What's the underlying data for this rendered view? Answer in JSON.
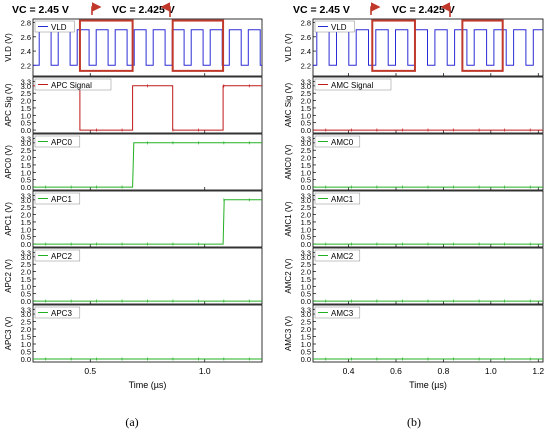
{
  "figure": {
    "panel_labels": [
      "(a)",
      "(b)"
    ],
    "header_labels": [
      "VC = 2.45 V",
      "VC = 2.425 V"
    ]
  },
  "colors": {
    "vld": "#2b2bd6",
    "signal": "#c01818",
    "cell": "#22b022",
    "highlight": "#c0392b",
    "annotation_arrow": "#c0392b"
  },
  "chart_data": [
    {
      "panel": "(a)",
      "type": "line",
      "xlabel": "Time (µs)",
      "xlim": [
        0.25,
        1.25
      ],
      "xticks": [
        0.5,
        1.0
      ],
      "xtick_labels": [
        "0.5",
        "1.0"
      ],
      "grid": false,
      "annotations": [
        "VC = 2.45 V",
        "VC = 2.425 V"
      ],
      "subplots": [
        {
          "ylabel": "VLD (V)",
          "legend": "VLD",
          "ylim": [
            2.05,
            2.85
          ],
          "yticks": [
            2.2,
            2.4,
            2.6,
            2.8
          ],
          "ytick_labels": [
            "2.2",
            "2.4",
            "2.6",
            "2.8"
          ],
          "series": [
            {
              "color_key": "vld",
              "pulse": {
                "low": 2.2,
                "high": 2.7,
                "start": 0.277,
                "period": 0.083,
                "high_width": 0.052
              },
              "edge_markers": true
            }
          ]
        },
        {
          "ylabel": "APC Sig (V)",
          "legend": "APC Signal",
          "ylim": [
            -0.2,
            3.6
          ],
          "yticks": [
            0.0,
            0.5,
            1.0,
            1.5,
            2.0,
            2.5,
            3.0,
            3.3
          ],
          "ytick_labels": [
            "0.0",
            "0.5",
            "1.0",
            "1.5",
            "2.0",
            "2.5",
            "3.0",
            "3.3"
          ],
          "series": [
            {
              "color_key": "signal",
              "x": [
                0.25,
                0.455,
                0.455,
                0.685,
                0.685,
                0.86,
                0.86,
                1.08,
                1.08,
                1.25
              ],
              "y": [
                3.0,
                3.0,
                0.0,
                0.0,
                3.0,
                3.0,
                0.0,
                0.0,
                3.0,
                3.0
              ]
            }
          ]
        },
        {
          "ylabel": "APC0 (V)",
          "legend": "APC0",
          "ylim": [
            -0.2,
            3.6
          ],
          "yticks": [
            0.0,
            0.5,
            1.0,
            1.5,
            2.0,
            2.5,
            3.0,
            3.3
          ],
          "ytick_labels": [
            "0.0",
            "0.5",
            "1.0",
            "1.5",
            "2.0",
            "2.5",
            "3.0",
            "3.3"
          ],
          "series": [
            {
              "color_key": "cell",
              "x": [
                0.25,
                0.685,
                0.69,
                1.25
              ],
              "y": [
                0.0,
                0.0,
                3.0,
                3.0
              ]
            }
          ]
        },
        {
          "ylabel": "APC1 (V)",
          "legend": "APC1",
          "ylim": [
            -0.2,
            3.6
          ],
          "yticks": [
            0.0,
            0.5,
            1.0,
            1.5,
            2.0,
            2.5,
            3.0,
            3.3
          ],
          "ytick_labels": [
            "0.0",
            "0.5",
            "1.0",
            "1.5",
            "2.0",
            "2.5",
            "3.0",
            "3.3"
          ],
          "series": [
            {
              "color_key": "cell",
              "x": [
                0.25,
                1.08,
                1.085,
                1.25
              ],
              "y": [
                0.0,
                0.0,
                3.0,
                3.0
              ]
            }
          ]
        },
        {
          "ylabel": "APC2 (V)",
          "legend": "APC2",
          "ylim": [
            -0.2,
            3.6
          ],
          "yticks": [
            0.0,
            0.5,
            1.0,
            1.5,
            2.0,
            2.5,
            3.0,
            3.3
          ],
          "ytick_labels": [
            "0.0",
            "0.5",
            "1.0",
            "1.5",
            "2.0",
            "2.5",
            "3.0",
            "3.3"
          ],
          "series": [
            {
              "color_key": "cell",
              "x": [
                0.25,
                1.25
              ],
              "y": [
                0.0,
                0.0
              ]
            }
          ]
        },
        {
          "ylabel": "APC3 (V)",
          "legend": "APC3",
          "ylim": [
            -0.2,
            3.6
          ],
          "yticks": [
            0.0,
            0.5,
            1.0,
            1.5,
            2.0,
            2.5,
            3.0,
            3.3
          ],
          "ytick_labels": [
            "0.0",
            "0.5",
            "1.0",
            "1.5",
            "2.0",
            "2.5",
            "3.0",
            "3.3"
          ],
          "series": [
            {
              "color_key": "cell",
              "x": [
                0.25,
                1.25
              ],
              "y": [
                0.0,
                0.0
              ]
            }
          ]
        }
      ],
      "highlights": [
        {
          "x": [
            0.455,
            0.685
          ],
          "y": [
            2.15,
            2.8
          ]
        },
        {
          "x": [
            0.86,
            1.08
          ],
          "y": [
            2.15,
            2.8
          ]
        }
      ]
    },
    {
      "panel": "(b)",
      "type": "line",
      "xlabel": "Time (µs)",
      "xlim": [
        0.25,
        1.22
      ],
      "xticks": [
        0.4,
        0.6,
        0.8,
        1.0,
        1.2
      ],
      "xtick_labels": [
        "0.4",
        "0.6",
        "0.8",
        "1.0",
        "1.2"
      ],
      "grid": false,
      "annotations": [
        "VC = 2.45 V",
        "VC = 2.425 V"
      ],
      "subplots": [
        {
          "ylabel": "VLD (V)",
          "legend": "VLD",
          "ylim": [
            2.05,
            2.85
          ],
          "yticks": [
            2.2,
            2.4,
            2.6,
            2.8
          ],
          "ytick_labels": [
            "2.2",
            "2.4",
            "2.6",
            "2.8"
          ],
          "series": [
            {
              "color_key": "vld",
              "pulse": {
                "low": 2.2,
                "high": 2.7,
                "start": 0.266,
                "period": 0.083,
                "high_width": 0.052
              },
              "edge_markers": true
            }
          ]
        },
        {
          "ylabel": "AMC Sig (V)",
          "legend": "AMC Signal",
          "ylim": [
            -0.2,
            3.6
          ],
          "yticks": [
            0.0,
            0.5,
            1.0,
            1.5,
            2.0,
            2.5,
            3.0,
            3.3
          ],
          "ytick_labels": [
            "0.0",
            "0.5",
            "1.0",
            "1.5",
            "2.0",
            "2.5",
            "3.0",
            "3.3"
          ],
          "series": [
            {
              "color_key": "signal",
              "x": [
                0.25,
                1.22
              ],
              "y": [
                0.0,
                0.0
              ]
            }
          ]
        },
        {
          "ylabel": "AMC0 (V)",
          "legend": "AMC0",
          "ylim": [
            -0.2,
            3.6
          ],
          "yticks": [
            0.0,
            0.5,
            1.0,
            1.5,
            2.0,
            2.5,
            3.0,
            3.3
          ],
          "ytick_labels": [
            "0.0",
            "0.5",
            "1.0",
            "1.5",
            "2.0",
            "2.5",
            "3.0",
            "3.3"
          ],
          "series": [
            {
              "color_key": "cell",
              "x": [
                0.25,
                1.22
              ],
              "y": [
                0.0,
                0.0
              ]
            }
          ]
        },
        {
          "ylabel": "AMC1 (V)",
          "legend": "AMC1",
          "ylim": [
            -0.2,
            3.6
          ],
          "yticks": [
            0.0,
            0.5,
            1.0,
            1.5,
            2.0,
            2.5,
            3.0,
            3.3
          ],
          "ytick_labels": [
            "0.0",
            "0.5",
            "1.0",
            "1.5",
            "2.0",
            "2.5",
            "3.0",
            "3.3"
          ],
          "series": [
            {
              "color_key": "cell",
              "x": [
                0.25,
                1.22
              ],
              "y": [
                0.0,
                0.0
              ]
            }
          ]
        },
        {
          "ylabel": "AMC2 (V)",
          "legend": "AMC2",
          "ylim": [
            -0.2,
            3.6
          ],
          "yticks": [
            0.0,
            0.5,
            1.0,
            1.5,
            2.0,
            2.5,
            3.0,
            3.3
          ],
          "ytick_labels": [
            "0.0",
            "0.5",
            "1.0",
            "1.5",
            "2.0",
            "2.5",
            "3.0",
            "3.3"
          ],
          "series": [
            {
              "color_key": "cell",
              "x": [
                0.25,
                1.22
              ],
              "y": [
                0.0,
                0.0
              ]
            }
          ]
        },
        {
          "ylabel": "AMC3 (V)",
          "legend": "AMC3",
          "ylim": [
            -0.2,
            3.6
          ],
          "yticks": [
            0.0,
            0.5,
            1.0,
            1.5,
            2.0,
            2.5,
            3.0,
            3.3
          ],
          "ytick_labels": [
            "0.0",
            "0.5",
            "1.0",
            "1.5",
            "2.0",
            "2.5",
            "3.0",
            "3.3"
          ],
          "series": [
            {
              "color_key": "cell",
              "x": [
                0.25,
                1.22
              ],
              "y": [
                0.0,
                0.0
              ]
            }
          ]
        }
      ],
      "highlights": [
        {
          "x": [
            0.5,
            0.68
          ],
          "y": [
            2.15,
            2.8
          ]
        },
        {
          "x": [
            0.88,
            1.05
          ],
          "y": [
            2.15,
            2.8
          ]
        }
      ]
    }
  ]
}
